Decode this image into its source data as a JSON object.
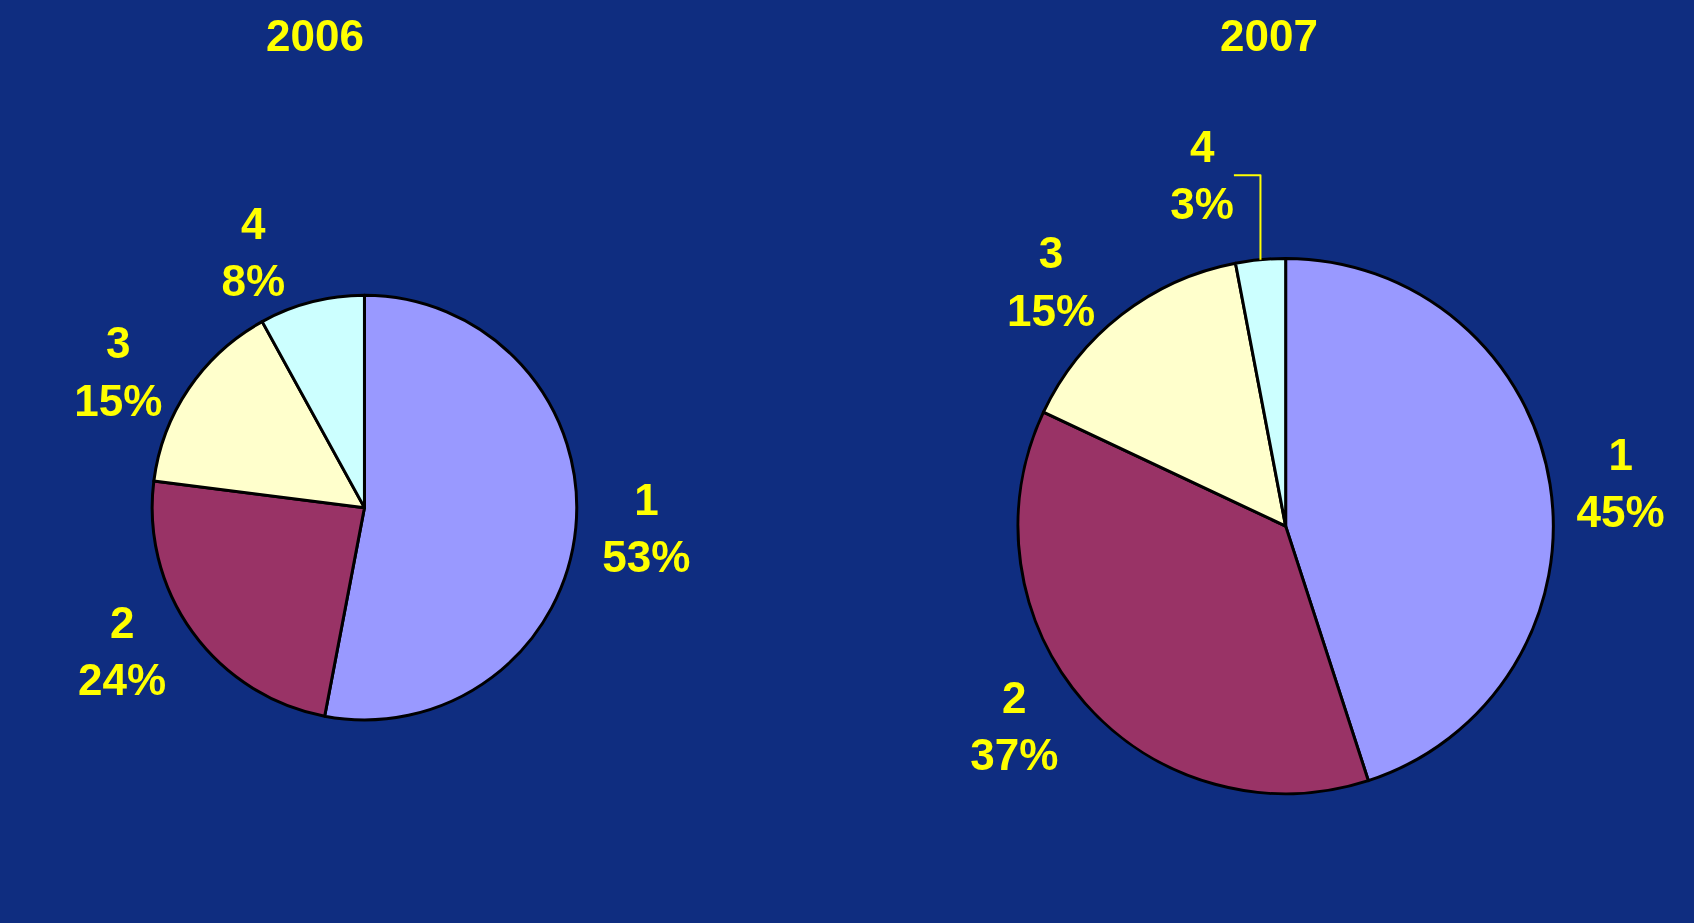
{
  "chart_data": [
    {
      "type": "pie",
      "title": "2006",
      "categories": [
        "1",
        "2",
        "3",
        "4"
      ],
      "values": [
        53,
        24,
        15,
        8
      ],
      "value_labels": [
        "53%",
        "24%",
        "15%",
        "8%"
      ],
      "colors": [
        "#9999ff",
        "#993366",
        "#ffffcc",
        "#ccffff"
      ]
    },
    {
      "type": "pie",
      "title": "2007",
      "categories": [
        "1",
        "2",
        "3",
        "4"
      ],
      "values": [
        45,
        37,
        15,
        3
      ],
      "value_labels": [
        "45%",
        "37%",
        "15%",
        "3%"
      ],
      "colors": [
        "#9999ff",
        "#993366",
        "#ffffcc",
        "#ccffff"
      ]
    }
  ]
}
